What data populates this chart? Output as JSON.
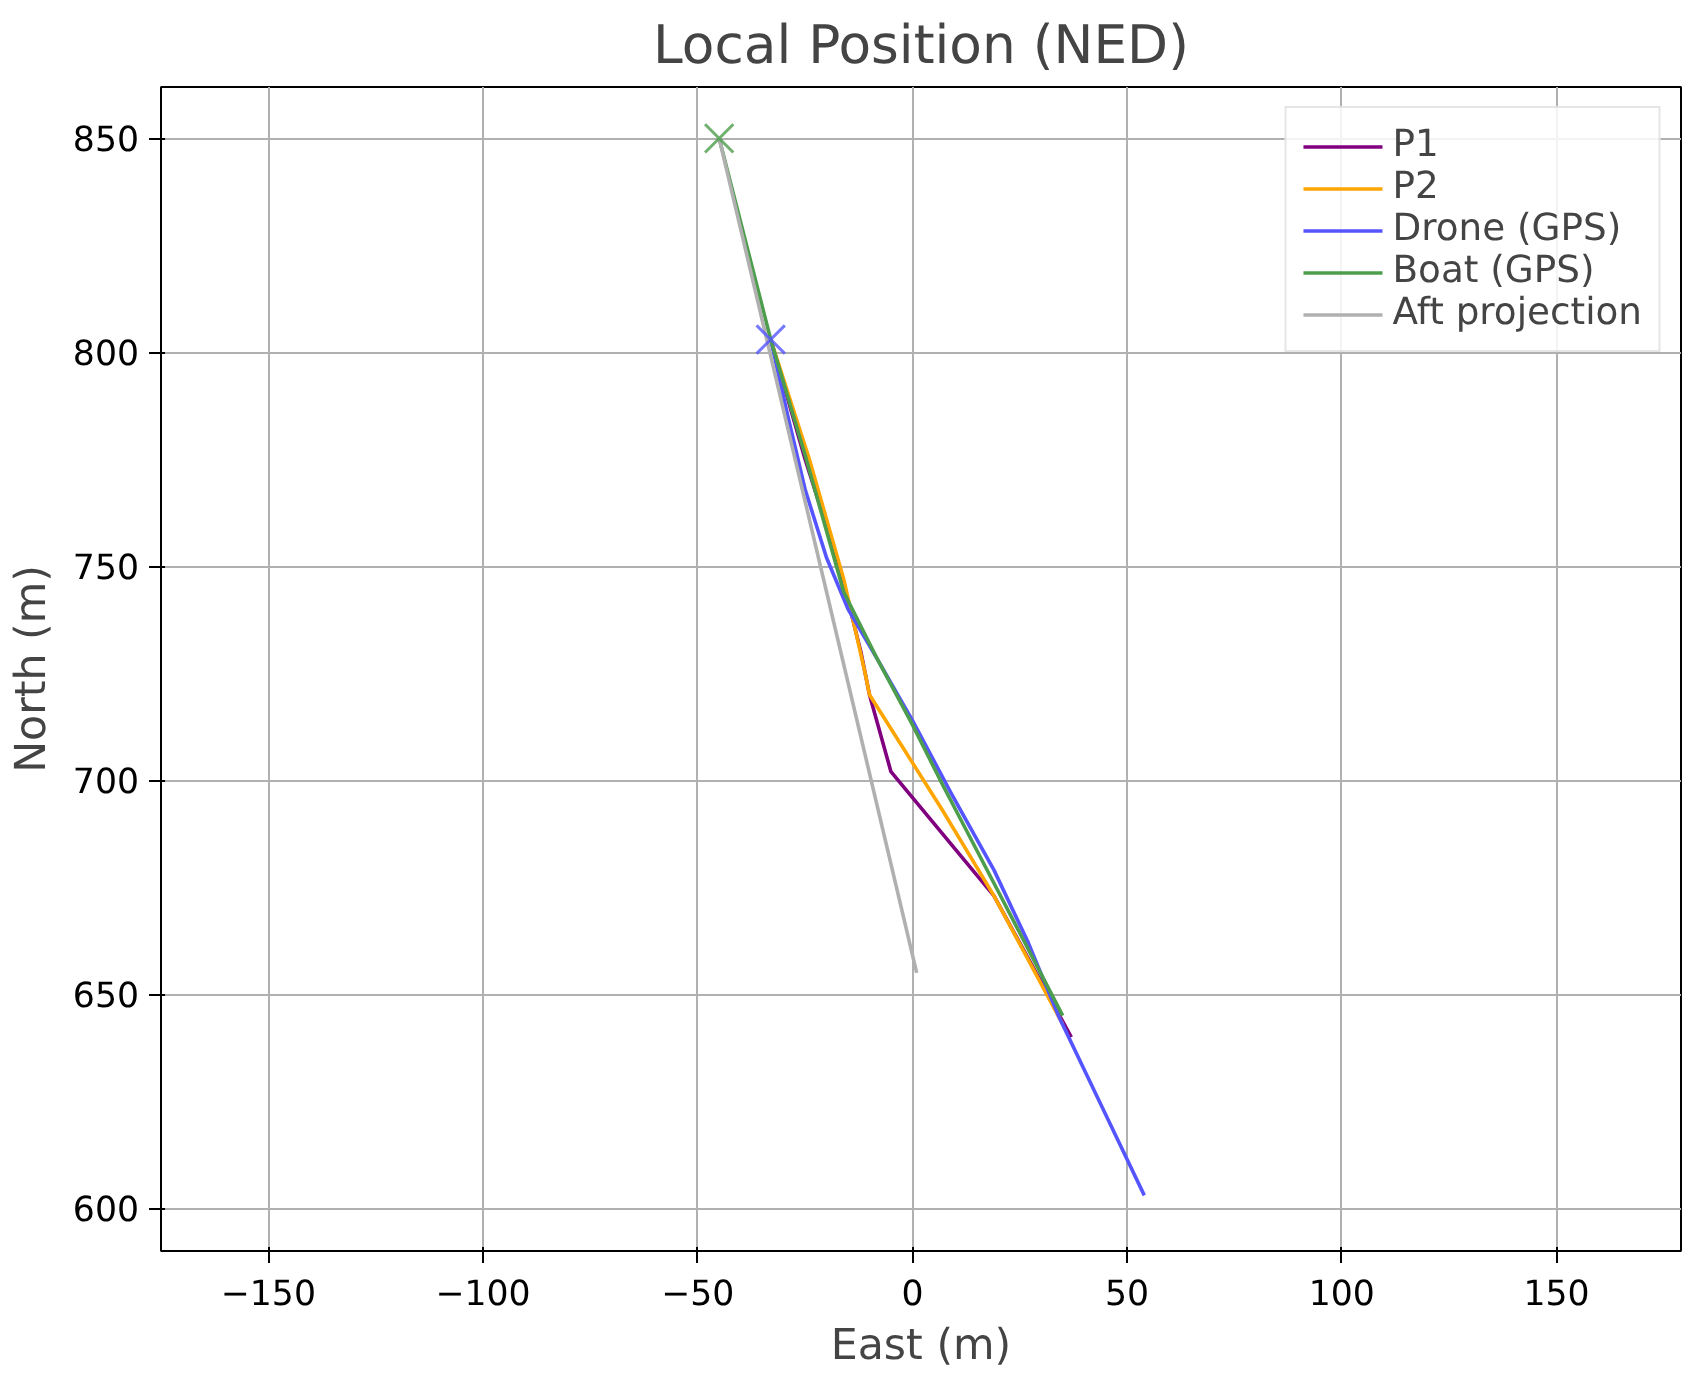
{
  "chart_data": {
    "type": "line",
    "title": "Local Position (NED)",
    "xlabel": "East (m)",
    "ylabel": "North (m)",
    "xlim": [
      -175,
      179
    ],
    "ylim": [
      590,
      862
    ],
    "xticks": [
      {
        "value": -150,
        "label": "−150"
      },
      {
        "value": -100,
        "label": "−100"
      },
      {
        "value": -50,
        "label": "−50"
      },
      0,
      50,
      100,
      150
    ],
    "yticks": [
      600,
      650,
      700,
      750,
      800,
      850
    ],
    "grid": true,
    "legend": "top right",
    "line_style": "solid",
    "series": [
      {
        "name": "P1",
        "color": "#800080",
        "x": [
          -33,
          -25,
          -17,
          -12,
          -10,
          -5,
          19,
          37
        ],
        "values": [
          803,
          775,
          750,
          730,
          720,
          702,
          673,
          640
        ]
      },
      {
        "name": "P2",
        "color": "#ffa500",
        "x": [
          -33,
          -24,
          -16,
          -11,
          -10,
          7,
          19,
          35
        ],
        "values": [
          803,
          775,
          747,
          725,
          720,
          693,
          673,
          643
        ]
      },
      {
        "name": "Drone (GPS)",
        "color": "#5555ff",
        "x": [
          -33,
          -29,
          -25,
          -20,
          -15,
          -8,
          0,
          9,
          19,
          27,
          34,
          44,
          54
        ],
        "values": [
          803,
          785,
          768,
          752,
          740,
          728,
          714,
          697,
          679,
          662,
          645,
          624,
          603
        ]
      },
      {
        "name": "Boat (GPS)",
        "color": "#4c9e4c",
        "x": [
          -45,
          -33,
          -25,
          -16,
          -8,
          0,
          7,
          20,
          35
        ],
        "values": [
          850,
          803,
          776,
          744,
          728,
          713,
          699,
          674,
          645
        ]
      },
      {
        "name": "Aft projection",
        "color": "#b0b0b0",
        "x": [
          -45,
          1
        ],
        "values": [
          850,
          655
        ]
      },
      {
        "type": "scatter",
        "marker": "cross",
        "color": "#4c9e4c",
        "x": [
          -45
        ],
        "values": [
          850
        ]
      },
      {
        "type": "scatter",
        "marker": "cross",
        "color": "#5555ff",
        "x": [
          -33
        ],
        "values": [
          803
        ]
      }
    ]
  }
}
